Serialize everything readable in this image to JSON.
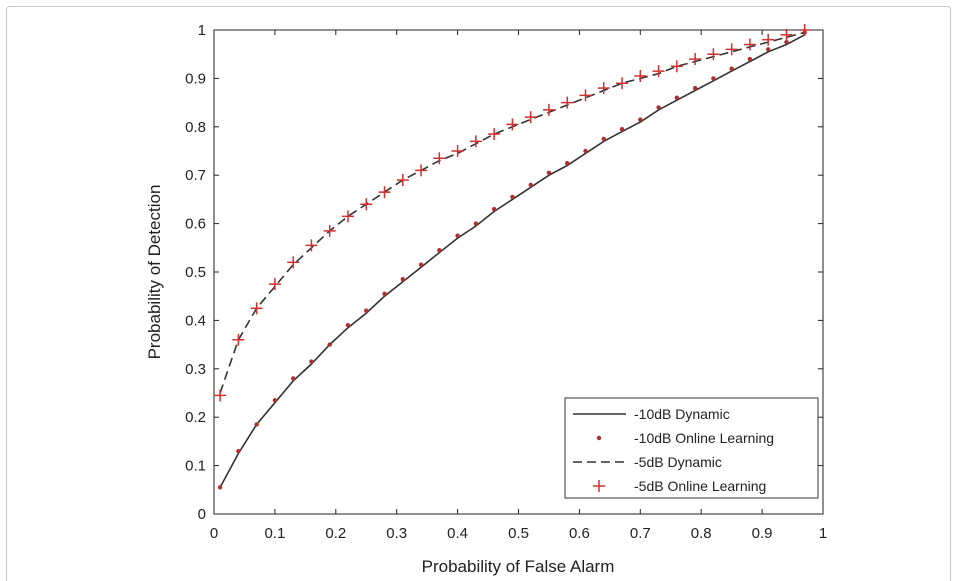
{
  "chart_data": {
    "type": "line",
    "title": "",
    "xlabel": "Probability of False Alarm",
    "ylabel": "Probability of Detection",
    "xlim": [
      0,
      1
    ],
    "ylim": [
      0,
      1
    ],
    "xticks": [
      "0",
      "0.1",
      "0.2",
      "0.3",
      "0.4",
      "0.5",
      "0.6",
      "0.7",
      "0.8",
      "0.9",
      "1"
    ],
    "yticks": [
      "0",
      "0.1",
      "0.2",
      "0.3",
      "0.4",
      "0.5",
      "0.6",
      "0.7",
      "0.8",
      "0.9",
      "1"
    ],
    "grid": false,
    "legend_position": "bottom-right",
    "series": [
      {
        "name": "-10dB Dynamic",
        "style": "solid",
        "color": "#333333",
        "x": [
          0.01,
          0.04,
          0.07,
          0.1,
          0.13,
          0.16,
          0.19,
          0.22,
          0.25,
          0.28,
          0.31,
          0.34,
          0.37,
          0.4,
          0.43,
          0.46,
          0.49,
          0.52,
          0.55,
          0.58,
          0.61,
          0.64,
          0.67,
          0.7,
          0.73,
          0.76,
          0.79,
          0.82,
          0.85,
          0.88,
          0.91,
          0.94,
          0.97
        ],
        "y": [
          0.055,
          0.125,
          0.185,
          0.23,
          0.275,
          0.31,
          0.35,
          0.385,
          0.415,
          0.45,
          0.48,
          0.51,
          0.54,
          0.57,
          0.595,
          0.625,
          0.65,
          0.675,
          0.7,
          0.72,
          0.745,
          0.77,
          0.79,
          0.81,
          0.835,
          0.855,
          0.875,
          0.895,
          0.915,
          0.935,
          0.955,
          0.97,
          0.99
        ]
      },
      {
        "name": "-10dB Online Learning",
        "style": "dot",
        "color": "#b03030",
        "x": [
          0.01,
          0.04,
          0.07,
          0.1,
          0.13,
          0.16,
          0.19,
          0.22,
          0.25,
          0.28,
          0.31,
          0.34,
          0.37,
          0.4,
          0.43,
          0.46,
          0.49,
          0.52,
          0.55,
          0.58,
          0.61,
          0.64,
          0.67,
          0.7,
          0.73,
          0.76,
          0.79,
          0.82,
          0.85,
          0.88,
          0.91,
          0.94,
          0.97
        ],
        "y": [
          0.055,
          0.13,
          0.185,
          0.235,
          0.28,
          0.315,
          0.35,
          0.39,
          0.42,
          0.455,
          0.485,
          0.515,
          0.545,
          0.575,
          0.6,
          0.63,
          0.655,
          0.68,
          0.705,
          0.725,
          0.75,
          0.775,
          0.795,
          0.815,
          0.84,
          0.86,
          0.88,
          0.9,
          0.92,
          0.94,
          0.96,
          0.975,
          0.995
        ]
      },
      {
        "name": "-5dB Dynamic",
        "style": "dashed",
        "color": "#333333",
        "x": [
          0.01,
          0.04,
          0.07,
          0.1,
          0.13,
          0.16,
          0.19,
          0.22,
          0.25,
          0.28,
          0.31,
          0.34,
          0.37,
          0.4,
          0.43,
          0.46,
          0.49,
          0.52,
          0.55,
          0.58,
          0.61,
          0.64,
          0.67,
          0.7,
          0.73,
          0.76,
          0.79,
          0.82,
          0.85,
          0.88,
          0.91,
          0.94,
          0.97
        ],
        "y": [
          0.25,
          0.36,
          0.425,
          0.47,
          0.515,
          0.55,
          0.585,
          0.615,
          0.64,
          0.665,
          0.69,
          0.71,
          0.73,
          0.745,
          0.765,
          0.785,
          0.8,
          0.815,
          0.83,
          0.845,
          0.86,
          0.875,
          0.89,
          0.9,
          0.91,
          0.925,
          0.935,
          0.945,
          0.955,
          0.965,
          0.975,
          0.985,
          0.995
        ]
      },
      {
        "name": "-5dB Online Learning",
        "style": "plus",
        "color": "#d03030",
        "x": [
          0.01,
          0.04,
          0.07,
          0.1,
          0.13,
          0.16,
          0.19,
          0.22,
          0.25,
          0.28,
          0.31,
          0.34,
          0.37,
          0.4,
          0.43,
          0.46,
          0.49,
          0.52,
          0.55,
          0.58,
          0.61,
          0.64,
          0.67,
          0.7,
          0.73,
          0.76,
          0.79,
          0.82,
          0.85,
          0.88,
          0.91,
          0.94,
          0.97
        ],
        "y": [
          0.245,
          0.36,
          0.425,
          0.475,
          0.52,
          0.555,
          0.585,
          0.615,
          0.64,
          0.665,
          0.69,
          0.71,
          0.735,
          0.75,
          0.77,
          0.785,
          0.805,
          0.82,
          0.835,
          0.85,
          0.865,
          0.88,
          0.89,
          0.905,
          0.915,
          0.925,
          0.94,
          0.95,
          0.96,
          0.97,
          0.98,
          0.99,
          1.0
        ]
      }
    ]
  }
}
